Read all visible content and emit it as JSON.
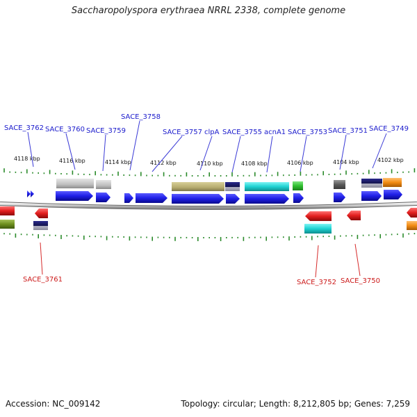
{
  "title": "Saccharopolyspora erythraea NRRL 2338, complete genome",
  "footer": {
    "accession": "Accession: NC_009142",
    "summary": "Topology: circular; Length: 8,212,805 bp; Genes: 7,259"
  },
  "colors": {
    "backbone": "#bdbdbd",
    "tick": "#2a8a2a",
    "forward_label": "#1a1acc",
    "reverse_label": "#cc1a1a",
    "blue_gene": "#1e1ee6",
    "gray_gene": "#c8c8c8",
    "khaki_gene": "#bfb67a",
    "cyan_gene": "#1ed2d2",
    "green_gene": "#2fbf2f",
    "red_gene": "#e21e1e",
    "olive_gene": "#6e8f1e",
    "orange_gene": "#f28c14",
    "navy_gene": "#1a1a66",
    "darkgray_gene": "#6e6e6e"
  },
  "kbp_ticks": [
    "4118 kbp",
    "4116 kbp",
    "4114 kbp",
    "4112 kbp",
    "4110 kbp",
    "4108 kbp",
    "4106 kbp",
    "4104 kbp",
    "4102 kbp"
  ],
  "forward_labels": [
    "SACE_3762",
    "SACE_3760",
    "SACE_3759",
    "SACE_3758",
    "SACE_3757",
    "clpA",
    "SACE_3755",
    "acnA1",
    "SACE_3753",
    "SACE_3751",
    "SACE_3749"
  ],
  "reverse_labels": [
    "SACE_3761",
    "SACE_3752",
    "SACE_3750"
  ]
}
